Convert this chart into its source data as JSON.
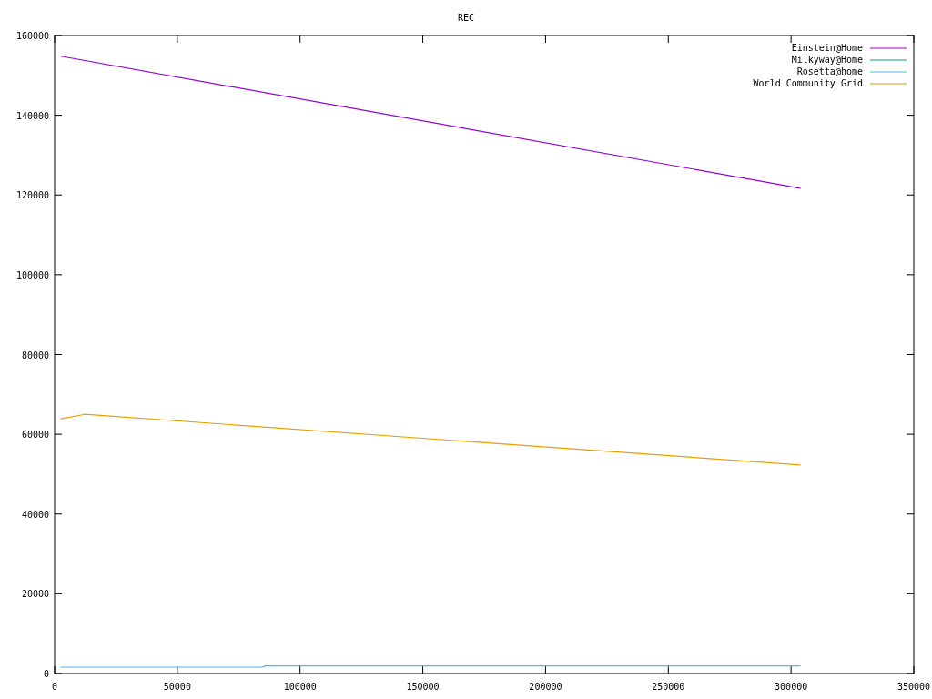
{
  "chart_data": {
    "type": "line",
    "title": "REC",
    "xlim": [
      0,
      350000
    ],
    "xticks": [
      0,
      50000,
      100000,
      150000,
      200000,
      250000,
      300000,
      350000
    ],
    "ylim": [
      0,
      160000
    ],
    "yticks": [
      0,
      20000,
      40000,
      60000,
      80000,
      100000,
      120000,
      140000,
      160000
    ],
    "grid": false,
    "legend": "top right",
    "line_style": "solid",
    "series": [
      {
        "name": "Einstein@Home",
        "color": "#9400d3",
        "x": [
          2600,
          303700
        ],
        "values": [
          154800,
          121700
        ]
      },
      {
        "name": "Milkyway@Home",
        "color": "#009e73",
        "values": [
          null
        ]
      },
      {
        "name": "Rosetta@home",
        "color": "#56b4e9",
        "x": [
          2600,
          85000,
          85600,
          303700
        ],
        "values": [
          1600,
          1600,
          1900,
          1900
        ]
      },
      {
        "name": "World Community Grid",
        "color": "#e69f00",
        "x": [
          2600,
          12200,
          303700
        ],
        "values": [
          63900,
          65000,
          52300
        ]
      }
    ]
  }
}
